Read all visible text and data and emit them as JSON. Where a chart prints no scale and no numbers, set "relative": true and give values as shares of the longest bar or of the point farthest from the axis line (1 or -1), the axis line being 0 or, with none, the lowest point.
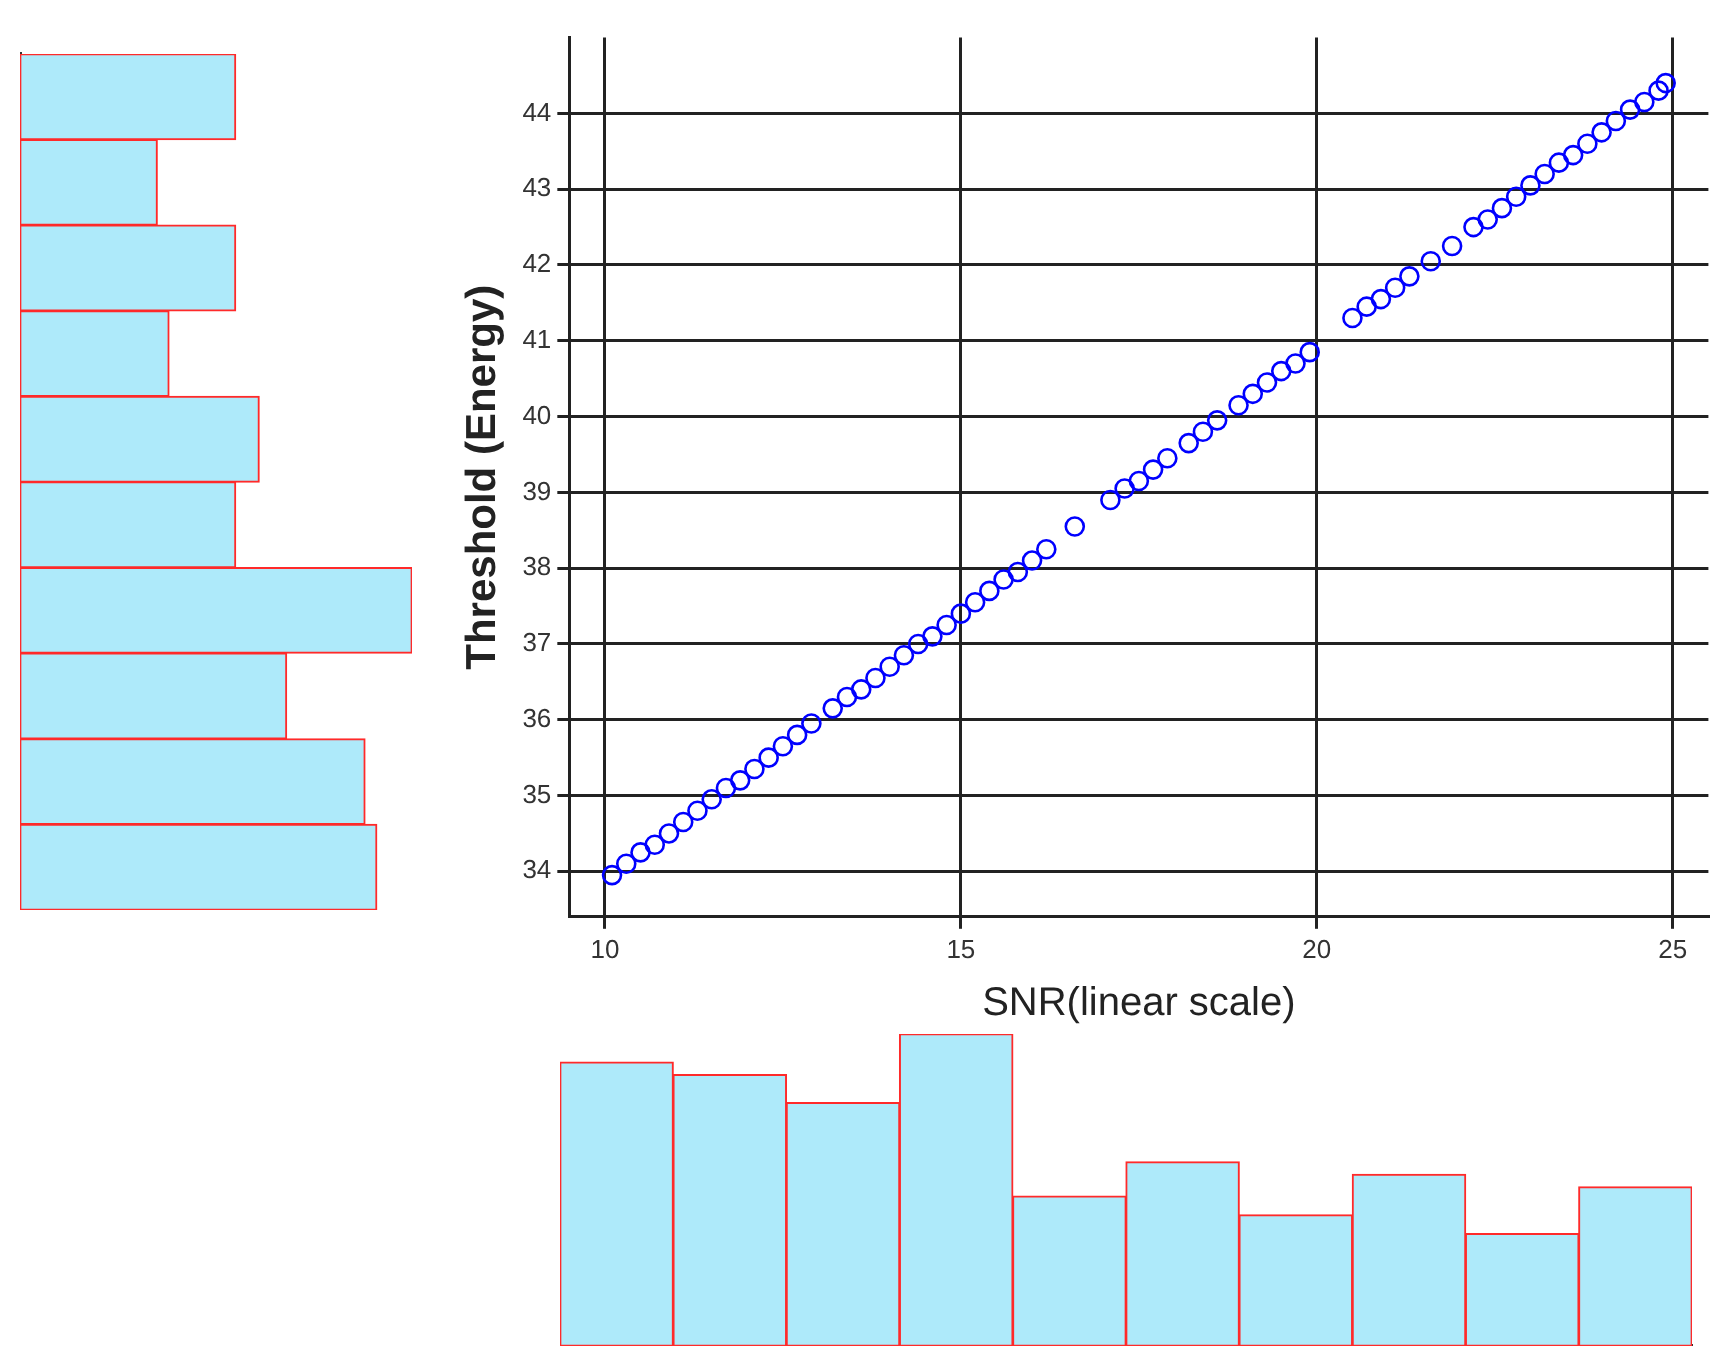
{
  "chart_data": [
    {
      "type": "scatter",
      "xlabel": "SNR(linear scale)",
      "ylabel": "Threshold (Energy)",
      "xlim": [
        9.5,
        25.5
      ],
      "ylim": [
        33.4,
        45
      ],
      "xticks": [
        10,
        15,
        20,
        25
      ],
      "yticks": [
        34,
        35,
        36,
        37,
        38,
        39,
        40,
        41,
        42,
        43,
        44
      ],
      "grid": true,
      "legend": false,
      "marker": "circle",
      "series": [
        {
          "color": "#0000ff",
          "x": [
            10.1,
            10.3,
            10.5,
            10.7,
            10.9,
            11.1,
            11.3,
            11.5,
            11.7,
            11.9,
            12.1,
            12.3,
            12.5,
            12.7,
            12.9,
            13.2,
            13.4,
            13.6,
            13.8,
            14.0,
            14.2,
            14.4,
            14.6,
            14.8,
            15.0,
            15.2,
            15.4,
            15.6,
            15.8,
            16.0,
            16.2,
            16.6,
            17.1,
            17.3,
            17.5,
            17.7,
            17.9,
            18.2,
            18.4,
            18.6,
            18.9,
            19.1,
            19.3,
            19.5,
            19.7,
            19.9,
            20.5,
            20.7,
            20.9,
            21.1,
            21.3,
            21.6,
            21.9,
            22.2,
            22.4,
            22.6,
            22.8,
            23.0,
            23.2,
            23.4,
            23.6,
            23.8,
            24.0,
            24.2,
            24.4,
            24.6,
            24.8,
            24.9
          ],
          "values": [
            33.95,
            34.1,
            34.25,
            34.35,
            34.5,
            34.65,
            34.8,
            34.95,
            35.1,
            35.2,
            35.35,
            35.5,
            35.65,
            35.8,
            35.95,
            36.15,
            36.3,
            36.4,
            36.55,
            36.7,
            36.85,
            37.0,
            37.1,
            37.25,
            37.4,
            37.55,
            37.7,
            37.85,
            37.95,
            38.1,
            38.25,
            38.55,
            38.9,
            39.05,
            39.15,
            39.3,
            39.45,
            39.65,
            39.8,
            39.95,
            40.15,
            40.3,
            40.45,
            40.6,
            40.7,
            40.85,
            41.3,
            41.45,
            41.55,
            41.7,
            41.85,
            42.05,
            42.25,
            42.5,
            42.6,
            42.75,
            42.9,
            43.05,
            43.2,
            43.35,
            43.45,
            43.6,
            43.75,
            43.9,
            44.05,
            44.15,
            44.3,
            44.4
          ]
        }
      ]
    },
    {
      "type": "bar",
      "orientation": "horizontal",
      "relative": true,
      "legend": false,
      "color": "#aeeafa",
      "categories": [
        null,
        null,
        null,
        null,
        null,
        null,
        null,
        null,
        null,
        null
      ],
      "values": [
        0.55,
        0.35,
        0.55,
        0.38,
        0.61,
        0.55,
        1,
        0.68,
        0.88,
        0.91
      ]
    },
    {
      "type": "bar",
      "relative": true,
      "legend": false,
      "color": "#aeeafa",
      "categories": [
        null,
        null,
        null,
        null,
        null,
        null,
        null,
        null,
        null,
        null
      ],
      "values": [
        0.91,
        0.87,
        0.78,
        1,
        0.48,
        0.59,
        0.42,
        0.55,
        0.36,
        0.51
      ]
    }
  ]
}
